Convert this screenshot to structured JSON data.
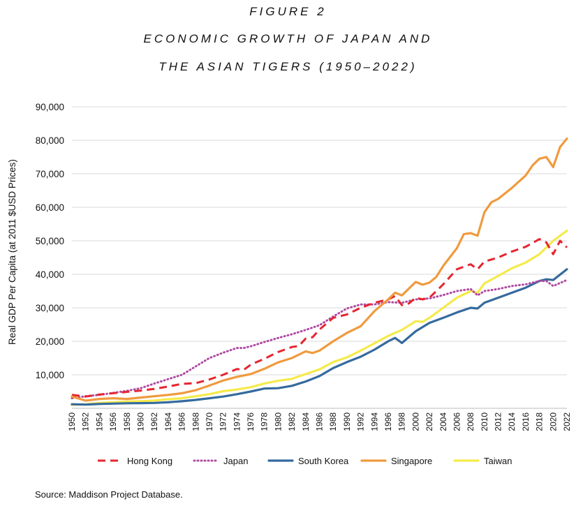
{
  "figure": {
    "label": "FIGURE 2",
    "title_line1": "ECONOMIC GROWTH OF JAPAN AND",
    "title_line2": "THE ASIAN TIGERS (1950–2022)"
  },
  "source": "Source: Maddison Project Database.",
  "chart_data": {
    "type": "line",
    "ylabel": "Real GDP Per Capita (at 2011 $USD Prices)",
    "xlabel": "",
    "ylim": [
      0,
      90000
    ],
    "xlim": [
      1950,
      2022
    ],
    "yticks": [
      10000,
      20000,
      30000,
      40000,
      50000,
      60000,
      70000,
      80000,
      90000
    ],
    "ytick_labels": [
      "10,000",
      "20,000",
      "30,000",
      "40,000",
      "50,000",
      "60,000",
      "70,000",
      "80,000",
      "90,000"
    ],
    "xticks": [
      1950,
      1952,
      1954,
      1956,
      1958,
      1960,
      1962,
      1964,
      1966,
      1968,
      1970,
      1972,
      1974,
      1976,
      1978,
      1980,
      1982,
      1984,
      1986,
      1988,
      1990,
      1992,
      1994,
      1996,
      1998,
      2000,
      2002,
      2004,
      2006,
      2008,
      2010,
      2012,
      2014,
      2016,
      2018,
      2020,
      2022
    ],
    "grid": "horizontal",
    "legend_position": "bottom",
    "series": [
      {
        "name": "Hong Kong",
        "color": "#e52530",
        "style": "dashed",
        "points": [
          [
            1950,
            4000
          ],
          [
            1952,
            3500
          ],
          [
            1954,
            4100
          ],
          [
            1956,
            4500
          ],
          [
            1958,
            4900
          ],
          [
            1960,
            5300
          ],
          [
            1962,
            5800
          ],
          [
            1964,
            6500
          ],
          [
            1966,
            7300
          ],
          [
            1968,
            7500
          ],
          [
            1970,
            8600
          ],
          [
            1972,
            10000
          ],
          [
            1974,
            11700
          ],
          [
            1975,
            11500
          ],
          [
            1976,
            13000
          ],
          [
            1978,
            14800
          ],
          [
            1980,
            16800
          ],
          [
            1982,
            18300
          ],
          [
            1983,
            18600
          ],
          [
            1984,
            20800
          ],
          [
            1985,
            21200
          ],
          [
            1986,
            23500
          ],
          [
            1988,
            27000
          ],
          [
            1990,
            28000
          ],
          [
            1992,
            30000
          ],
          [
            1994,
            31500
          ],
          [
            1996,
            32500
          ],
          [
            1997,
            33500
          ],
          [
            1998,
            30800
          ],
          [
            1999,
            31300
          ],
          [
            2000,
            33000
          ],
          [
            2001,
            32500
          ],
          [
            2002,
            33000
          ],
          [
            2004,
            37000
          ],
          [
            2006,
            41500
          ],
          [
            2008,
            43000
          ],
          [
            2009,
            41500
          ],
          [
            2010,
            43800
          ],
          [
            2012,
            45000
          ],
          [
            2014,
            46800
          ],
          [
            2016,
            48200
          ],
          [
            2018,
            50500
          ],
          [
            2019,
            49500
          ],
          [
            2020,
            46000
          ],
          [
            2021,
            50000
          ],
          [
            2022,
            48000
          ]
        ]
      },
      {
        "name": "Japan",
        "color": "#b04aa3",
        "style": "dotted",
        "points": [
          [
            1950,
            3000
          ],
          [
            1952,
            3600
          ],
          [
            1954,
            4000
          ],
          [
            1956,
            4600
          ],
          [
            1958,
            5200
          ],
          [
            1960,
            6000
          ],
          [
            1962,
            7400
          ],
          [
            1964,
            8700
          ],
          [
            1966,
            10000
          ],
          [
            1968,
            12500
          ],
          [
            1970,
            15000
          ],
          [
            1972,
            16600
          ],
          [
            1974,
            18000
          ],
          [
            1975,
            18000
          ],
          [
            1976,
            18500
          ],
          [
            1978,
            19800
          ],
          [
            1980,
            21000
          ],
          [
            1982,
            22100
          ],
          [
            1984,
            23400
          ],
          [
            1986,
            24800
          ],
          [
            1988,
            27400
          ],
          [
            1990,
            29800
          ],
          [
            1992,
            31000
          ],
          [
            1994,
            31000
          ],
          [
            1996,
            31700
          ],
          [
            1998,
            31500
          ],
          [
            2000,
            32500
          ],
          [
            2002,
            32800
          ],
          [
            2004,
            33800
          ],
          [
            2006,
            35000
          ],
          [
            2008,
            35600
          ],
          [
            2009,
            33700
          ],
          [
            2010,
            35000
          ],
          [
            2012,
            35600
          ],
          [
            2014,
            36500
          ],
          [
            2016,
            37000
          ],
          [
            2018,
            38000
          ],
          [
            2019,
            38000
          ],
          [
            2020,
            36500
          ],
          [
            2022,
            38300
          ]
        ]
      },
      {
        "name": "South Korea",
        "color": "#356a9e",
        "style": "solid",
        "points": [
          [
            1950,
            1200
          ],
          [
            1952,
            1100
          ],
          [
            1954,
            1300
          ],
          [
            1956,
            1400
          ],
          [
            1958,
            1500
          ],
          [
            1960,
            1550
          ],
          [
            1962,
            1600
          ],
          [
            1964,
            1800
          ],
          [
            1966,
            2100
          ],
          [
            1968,
            2500
          ],
          [
            1970,
            3000
          ],
          [
            1972,
            3500
          ],
          [
            1974,
            4200
          ],
          [
            1976,
            5000
          ],
          [
            1978,
            5900
          ],
          [
            1980,
            6000
          ],
          [
            1982,
            6700
          ],
          [
            1984,
            8000
          ],
          [
            1986,
            9600
          ],
          [
            1988,
            12000
          ],
          [
            1990,
            13800
          ],
          [
            1992,
            15400
          ],
          [
            1994,
            17500
          ],
          [
            1996,
            20000
          ],
          [
            1997,
            21000
          ],
          [
            1998,
            19500
          ],
          [
            2000,
            23000
          ],
          [
            2002,
            25500
          ],
          [
            2004,
            27000
          ],
          [
            2006,
            28600
          ],
          [
            2008,
            30000
          ],
          [
            2009,
            29800
          ],
          [
            2010,
            31500
          ],
          [
            2012,
            33000
          ],
          [
            2014,
            34500
          ],
          [
            2016,
            36000
          ],
          [
            2018,
            38000
          ],
          [
            2019,
            38500
          ],
          [
            2020,
            38300
          ],
          [
            2022,
            41500
          ]
        ]
      },
      {
        "name": "Singapore",
        "color": "#f09a3e",
        "style": "solid",
        "points": [
          [
            1950,
            3500
          ],
          [
            1952,
            2300
          ],
          [
            1954,
            2800
          ],
          [
            1956,
            3000
          ],
          [
            1958,
            2800
          ],
          [
            1960,
            3200
          ],
          [
            1962,
            3600
          ],
          [
            1964,
            4000
          ],
          [
            1966,
            4500
          ],
          [
            1968,
            5400
          ],
          [
            1970,
            6800
          ],
          [
            1972,
            8300
          ],
          [
            1974,
            9400
          ],
          [
            1976,
            10200
          ],
          [
            1978,
            11800
          ],
          [
            1980,
            13700
          ],
          [
            1982,
            15000
          ],
          [
            1984,
            17000
          ],
          [
            1985,
            16500
          ],
          [
            1986,
            17200
          ],
          [
            1988,
            20000
          ],
          [
            1990,
            22500
          ],
          [
            1992,
            24500
          ],
          [
            1994,
            29000
          ],
          [
            1996,
            32500
          ],
          [
            1997,
            34500
          ],
          [
            1998,
            33700
          ],
          [
            2000,
            37700
          ],
          [
            2001,
            36900
          ],
          [
            2002,
            37500
          ],
          [
            2003,
            39200
          ],
          [
            2004,
            42500
          ],
          [
            2006,
            47800
          ],
          [
            2007,
            52000
          ],
          [
            2008,
            52300
          ],
          [
            2009,
            51500
          ],
          [
            2010,
            58500
          ],
          [
            2011,
            61500
          ],
          [
            2012,
            62500
          ],
          [
            2014,
            65800
          ],
          [
            2016,
            69500
          ],
          [
            2017,
            72500
          ],
          [
            2018,
            74500
          ],
          [
            2019,
            75000
          ],
          [
            2020,
            72000
          ],
          [
            2021,
            78000
          ],
          [
            2022,
            80500
          ]
        ]
      },
      {
        "name": "Taiwan",
        "color": "#f5ea4a",
        "style": "solid",
        "points": [
          [
            1950,
            1000
          ],
          [
            1952,
            1200
          ],
          [
            1954,
            1600
          ],
          [
            1956,
            1800
          ],
          [
            1958,
            2000
          ],
          [
            1960,
            2100
          ],
          [
            1962,
            2300
          ],
          [
            1964,
            2700
          ],
          [
            1966,
            3000
          ],
          [
            1968,
            3600
          ],
          [
            1970,
            4200
          ],
          [
            1972,
            5100
          ],
          [
            1974,
            5600
          ],
          [
            1976,
            6300
          ],
          [
            1978,
            7400
          ],
          [
            1980,
            8200
          ],
          [
            1982,
            8800
          ],
          [
            1984,
            10200
          ],
          [
            1986,
            11600
          ],
          [
            1988,
            13800
          ],
          [
            1990,
            15200
          ],
          [
            1992,
            17200
          ],
          [
            1994,
            19400
          ],
          [
            1996,
            21600
          ],
          [
            1998,
            23400
          ],
          [
            2000,
            26000
          ],
          [
            2001,
            25800
          ],
          [
            2002,
            27000
          ],
          [
            2004,
            30000
          ],
          [
            2006,
            33000
          ],
          [
            2008,
            35000
          ],
          [
            2009,
            34500
          ],
          [
            2010,
            37300
          ],
          [
            2012,
            39500
          ],
          [
            2014,
            41800
          ],
          [
            2016,
            43500
          ],
          [
            2018,
            46000
          ],
          [
            2020,
            50000
          ],
          [
            2022,
            53000
          ]
        ]
      }
    ]
  }
}
